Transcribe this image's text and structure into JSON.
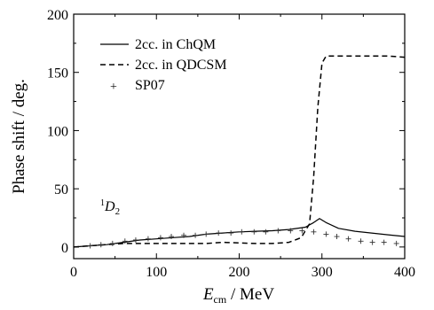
{
  "chart_data": {
    "type": "line",
    "xlabel_main": "E",
    "xlabel_sub": "cm",
    "xlabel_rest": " / MeV",
    "ylabel": "Phase shift / deg.",
    "annotation_sup": "1",
    "annotation_main": "D",
    "annotation_sub": "2",
    "xlim": [
      0,
      400
    ],
    "ylim": [
      -10,
      200
    ],
    "xticks": [
      0,
      100,
      200,
      300,
      400
    ],
    "yticks": [
      0,
      50,
      100,
      150,
      200
    ],
    "legend_placement": "top-left",
    "series": [
      {
        "name": "2cc. in ChQM",
        "style": "solid",
        "points": [
          [
            0,
            0
          ],
          [
            20,
            1
          ],
          [
            40,
            2
          ],
          [
            60,
            4
          ],
          [
            80,
            6
          ],
          [
            100,
            7
          ],
          [
            120,
            8
          ],
          [
            140,
            9
          ],
          [
            160,
            11
          ],
          [
            180,
            12
          ],
          [
            200,
            13
          ],
          [
            220,
            13.5
          ],
          [
            240,
            14
          ],
          [
            260,
            15
          ],
          [
            280,
            17
          ],
          [
            290,
            21
          ],
          [
            297,
            24.5
          ],
          [
            305,
            21
          ],
          [
            320,
            16
          ],
          [
            340,
            13.5
          ],
          [
            360,
            12
          ],
          [
            380,
            10.5
          ],
          [
            400,
            9
          ]
        ]
      },
      {
        "name": "2cc. in QDCSM",
        "style": "dashed",
        "points": [
          [
            0,
            0
          ],
          [
            20,
            1
          ],
          [
            40,
            2
          ],
          [
            60,
            3
          ],
          [
            80,
            3
          ],
          [
            100,
            3
          ],
          [
            120,
            3
          ],
          [
            140,
            3
          ],
          [
            160,
            3
          ],
          [
            180,
            4
          ],
          [
            200,
            3.5
          ],
          [
            220,
            3
          ],
          [
            240,
            3
          ],
          [
            260,
            4
          ],
          [
            275,
            8
          ],
          [
            285,
            20
          ],
          [
            290,
            60
          ],
          [
            295,
            120
          ],
          [
            300,
            158
          ],
          [
            305,
            164
          ],
          [
            320,
            164
          ],
          [
            350,
            164
          ],
          [
            380,
            164
          ],
          [
            400,
            163
          ]
        ]
      },
      {
        "name": "SP07",
        "style": "marker",
        "points": [
          [
            20,
            1
          ],
          [
            33,
            2
          ],
          [
            47,
            3
          ],
          [
            62,
            5
          ],
          [
            75,
            6
          ],
          [
            90,
            7
          ],
          [
            105,
            8
          ],
          [
            118,
            9
          ],
          [
            133,
            10
          ],
          [
            147,
            10
          ],
          [
            160,
            11
          ],
          [
            175,
            12
          ],
          [
            190,
            12
          ],
          [
            203,
            13
          ],
          [
            218,
            13
          ],
          [
            232,
            13
          ],
          [
            247,
            14
          ],
          [
            262,
            14
          ],
          [
            276,
            14
          ],
          [
            290,
            13
          ],
          [
            305,
            11
          ],
          [
            318,
            9
          ],
          [
            332,
            7
          ],
          [
            347,
            5
          ],
          [
            361,
            4
          ],
          [
            375,
            4
          ],
          [
            390,
            3
          ]
        ]
      }
    ]
  }
}
